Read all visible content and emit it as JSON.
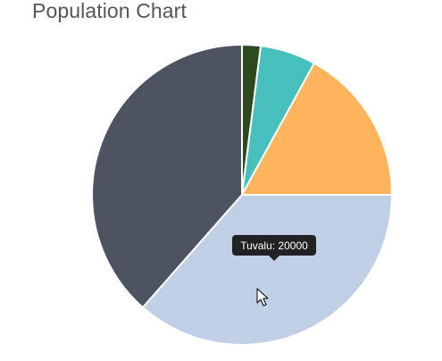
{
  "page": {
    "title": "Population Chart"
  },
  "tooltip": {
    "label": "Tuvalu",
    "value": "20000",
    "text": "Tuvalu: 20000"
  },
  "chart_data": {
    "type": "pie",
    "title": "Population Chart",
    "slices": [
      {
        "value": 2,
        "color": "#2d4a1e"
      },
      {
        "value": 6,
        "color": "#47bfbd"
      },
      {
        "value": 17,
        "color": "#fdb45c"
      },
      {
        "name": "Tuvalu",
        "value": 36.5,
        "color": "#c1cfe6"
      },
      {
        "value": 38.5,
        "color": "#4d5361"
      }
    ],
    "start_angle_deg": -90
  },
  "colors": {
    "tooltip_bg": "#202226",
    "slice_border": "#ffffff",
    "cursor": "#ffffff"
  },
  "icons": {
    "cursor": "mouse-pointer-icon"
  }
}
